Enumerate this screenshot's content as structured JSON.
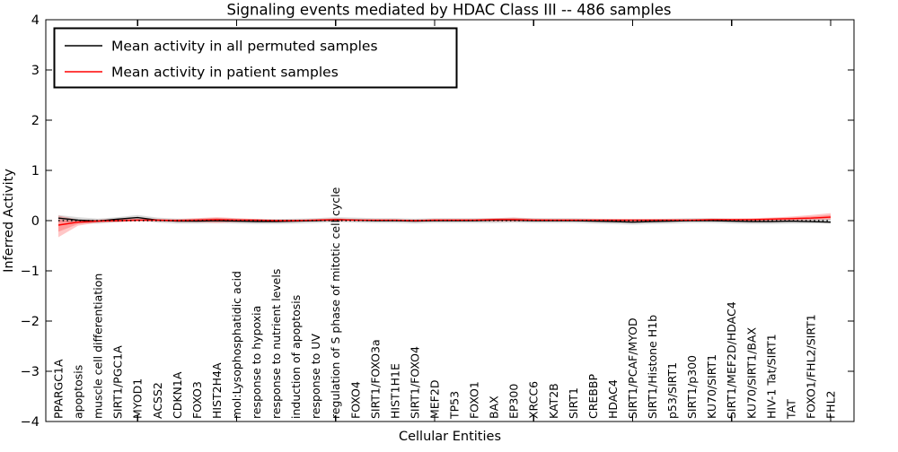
{
  "title": "Signaling events mediated by HDAC Class III -- 486 samples",
  "axes": {
    "ylabel": "Inferred Activity",
    "xlabel": "Cellular Entities",
    "yticks": [
      "4",
      "3",
      "2",
      "1",
      "0",
      "−1",
      "−2",
      "−3",
      "−4"
    ],
    "ylim": [
      -4,
      4
    ]
  },
  "legend": {
    "items": [
      {
        "label": "Mean activity in all permuted samples",
        "color": "#000000"
      },
      {
        "label": "Mean activity in patient samples",
        "color": "#ff0000"
      }
    ]
  },
  "chart_data": {
    "type": "line",
    "title": "Signaling events mediated by HDAC Class III -- 486 samples",
    "xlabel": "Cellular Entities",
    "ylabel": "Inferred Activity",
    "ylim": [
      -4,
      4
    ],
    "x_major_tick_step": 5,
    "grid": false,
    "legend_position": "upper left",
    "zero_line": {
      "y": 0,
      "style": "dotted",
      "color": "#000000"
    },
    "categories": [
      "PPARGC1A",
      "apoptosis",
      "muscle cell differentiation",
      "SIRT1/PGC1A",
      "MYOD1",
      "ACSS2",
      "CDKN1A",
      "FOXO3",
      "HIST2H4A",
      "mol:Lysophosphatidic acid",
      "response to hypoxia",
      "response to nutrient levels",
      "induction of apoptosis",
      "response to UV",
      "regulation of S phase of mitotic cell cycle",
      "FOXO4",
      "SIRT1/FOXO3a",
      "HIST1H1E",
      "SIRT1/FOXO4",
      "MEF2D",
      "TP53",
      "FOXO1",
      "BAX",
      "EP300",
      "XRCC6",
      "KAT2B",
      "SIRT1",
      "CREBBP",
      "HDAC4",
      "SIRT1/PCAF/MYOD",
      "SIRT1/Histone H1b",
      "p53/SIRT1",
      "SIRT1/p300",
      "KU70/SIRT1",
      "SIRT1/MEF2D/HDAC4",
      "KU70/SIRT1/BAX",
      "HIV-1 Tat/SIRT1",
      "TAT",
      "FOXO1/FHL2/SIRT1",
      "FHL2"
    ],
    "series": [
      {
        "name": "Mean activity in all permuted samples",
        "color": "#000000",
        "band_color": "rgba(0,0,0,0.14)",
        "values": [
          0.05,
          0.01,
          -0.01,
          0.03,
          0.06,
          0.01,
          -0.01,
          -0.01,
          0.0,
          -0.01,
          -0.02,
          -0.02,
          -0.01,
          0.0,
          0.02,
          0.01,
          0.0,
          0.0,
          -0.01,
          0.0,
          0.0,
          0.0,
          0.01,
          0.01,
          0.0,
          0.0,
          0.0,
          -0.01,
          -0.02,
          -0.03,
          -0.02,
          -0.01,
          0.0,
          0.0,
          -0.01,
          -0.02,
          -0.02,
          -0.01,
          -0.02,
          -0.03
        ],
        "band_upper": [
          0.11,
          0.07,
          0.04,
          0.07,
          0.11,
          0.06,
          0.04,
          0.04,
          0.05,
          0.04,
          0.03,
          0.03,
          0.04,
          0.05,
          0.07,
          0.06,
          0.05,
          0.05,
          0.04,
          0.05,
          0.05,
          0.05,
          0.05,
          0.06,
          0.05,
          0.05,
          0.05,
          0.04,
          0.03,
          0.02,
          0.03,
          0.04,
          0.05,
          0.05,
          0.04,
          0.03,
          0.03,
          0.04,
          0.04,
          0.04
        ],
        "band_lower": [
          -0.01,
          -0.05,
          -0.06,
          -0.03,
          0.01,
          -0.04,
          -0.06,
          -0.06,
          -0.05,
          -0.06,
          -0.07,
          -0.07,
          -0.06,
          -0.05,
          -0.03,
          -0.04,
          -0.05,
          -0.05,
          -0.06,
          -0.05,
          -0.05,
          -0.05,
          -0.05,
          -0.04,
          -0.05,
          -0.05,
          -0.05,
          -0.06,
          -0.07,
          -0.08,
          -0.07,
          -0.06,
          -0.05,
          -0.05,
          -0.06,
          -0.07,
          -0.07,
          -0.06,
          -0.06,
          -0.06
        ]
      },
      {
        "name": "Mean activity in patient samples",
        "color": "#ff0000",
        "band_color": "rgba(255,0,0,0.22)",
        "values": [
          -0.09,
          -0.03,
          -0.01,
          0.0,
          0.01,
          0.01,
          0.0,
          0.01,
          0.02,
          0.01,
          0.01,
          0.0,
          0.0,
          0.01,
          0.02,
          0.01,
          0.01,
          0.01,
          0.0,
          0.01,
          0.01,
          0.01,
          0.02,
          0.02,
          0.01,
          0.01,
          0.01,
          0.01,
          0.01,
          0.01,
          0.01,
          0.01,
          0.01,
          0.02,
          0.02,
          0.02,
          0.03,
          0.04,
          0.05,
          0.07
        ],
        "band_upper": [
          0.1,
          0.02,
          0.02,
          0.04,
          0.04,
          0.03,
          0.03,
          0.05,
          0.07,
          0.05,
          0.03,
          0.02,
          0.02,
          0.03,
          0.05,
          0.03,
          0.02,
          0.02,
          0.02,
          0.03,
          0.03,
          0.03,
          0.05,
          0.06,
          0.04,
          0.03,
          0.03,
          0.03,
          0.03,
          0.03,
          0.03,
          0.03,
          0.03,
          0.04,
          0.04,
          0.05,
          0.06,
          0.08,
          0.11,
          0.15
        ],
        "band_lower": [
          -0.33,
          -0.1,
          -0.04,
          -0.03,
          -0.02,
          -0.02,
          -0.02,
          -0.03,
          -0.05,
          -0.03,
          -0.02,
          -0.01,
          -0.01,
          -0.01,
          -0.02,
          -0.01,
          -0.01,
          -0.01,
          -0.01,
          -0.01,
          -0.01,
          -0.01,
          -0.02,
          -0.02,
          -0.01,
          -0.01,
          -0.01,
          -0.02,
          -0.02,
          -0.02,
          -0.01,
          -0.01,
          -0.01,
          -0.01,
          -0.01,
          -0.01,
          -0.01,
          0.0,
          0.01,
          0.02
        ]
      }
    ]
  }
}
